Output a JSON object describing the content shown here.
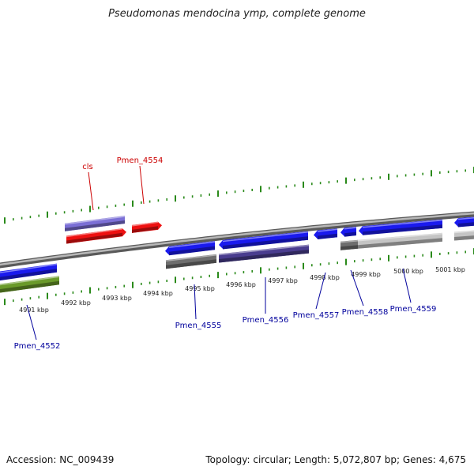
{
  "title": "Pseudomonas mendocina ymp, complete genome",
  "footer": {
    "accession": "Accession: NC_009439",
    "stats": "Topology: circular; Length: 5,072,807 bp; Genes: 4,675"
  },
  "colors": {
    "backbone": "#8a8a8a",
    "ticks": "#2a8a1a",
    "gene_blue": "#1a1aee",
    "gene_red": "#ee1111",
    "gene_lavender": "#7b6fd6",
    "gene_indigo": "#4a3d8f",
    "gene_gray": "#6e6e6e",
    "gene_lightgray": "#c4c4c4",
    "gene_olive": "#6a9a2a",
    "label_red": "#cc0000",
    "label_blue": "#00009c"
  },
  "kbp_labels": [
    "4991 kbp",
    "4992 kbp",
    "4993 kbp",
    "4994 kbp",
    "4995 kbp",
    "4996 kbp",
    "4997 kbp",
    "4998 kbp",
    "4999 kbp",
    "5000 kbp",
    "5001 kbp"
  ],
  "gene_labels": {
    "top": [
      "cls",
      "Pmen_4554"
    ],
    "bottom": [
      "Pmen_4552",
      "Pmen_4555",
      "Pmen_4556",
      "Pmen_4557",
      "Pmen_4558",
      "Pmen_4559"
    ]
  },
  "genes": [
    {
      "ring": "outer2",
      "color": "gene_lavender",
      "strand": "none"
    },
    {
      "ring": "outer1",
      "color": "gene_red",
      "strand": "forward"
    },
    {
      "ring": "outer1",
      "color": "gene_red",
      "strand": "forward"
    },
    {
      "ring": "inner1",
      "color": "gene_blue",
      "strand": "reverse"
    },
    {
      "ring": "inner1",
      "color": "gene_blue",
      "strand": "reverse"
    },
    {
      "ring": "inner1",
      "color": "gene_blue",
      "strand": "reverse"
    },
    {
      "ring": "inner1",
      "color": "gene_blue",
      "strand": "reverse"
    },
    {
      "ring": "inner1",
      "color": "gene_blue",
      "strand": "reverse"
    },
    {
      "ring": "inner1",
      "color": "gene_blue",
      "strand": "reverse"
    },
    {
      "ring": "inner1",
      "color": "gene_blue",
      "strand": "reverse"
    },
    {
      "ring": "inner2",
      "color": "gene_olive",
      "strand": "none"
    },
    {
      "ring": "inner2",
      "color": "gene_gray",
      "strand": "none"
    },
    {
      "ring": "inner2",
      "color": "gene_indigo",
      "strand": "none"
    },
    {
      "ring": "inner2",
      "color": "gene_gray",
      "strand": "none"
    },
    {
      "ring": "inner2",
      "color": "gene_lightgray",
      "strand": "none"
    },
    {
      "ring": "inner2",
      "color": "gene_lightgray",
      "strand": "none"
    }
  ]
}
